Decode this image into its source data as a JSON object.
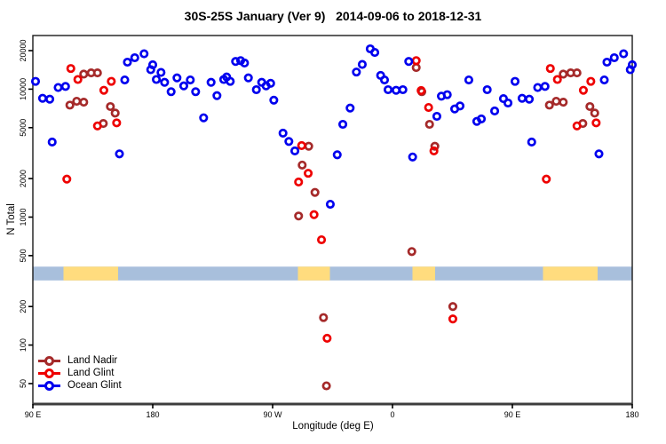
{
  "title": "30S-25S January (Ver 9)   2014-09-06 to 2018-12-31",
  "chart_data": {
    "type": "scatter",
    "title": "30S-25S January (Ver 9)   2014-09-06 to 2018-12-31",
    "xlabel": "Longitude (deg E)",
    "ylabel": "N Total",
    "y_scale": "log",
    "ylim": [
      50,
      20000
    ],
    "y_ticks": [
      50,
      100,
      200,
      500,
      1000,
      2000,
      5000,
      10000,
      20000
    ],
    "x_axis_span_deg": 450,
    "x_axis_note": "Axis starts at 90E and wraps eastward through 180, 90W, 0, 90E to 180; points with longitude >= 90E are plotted at both ends",
    "x_ticks": [
      {
        "axis_deg": 0,
        "label": "90 E"
      },
      {
        "axis_deg": 90,
        "label": "180"
      },
      {
        "axis_deg": 180,
        "label": "90 W"
      },
      {
        "axis_deg": 270,
        "label": "0"
      },
      {
        "axis_deg": 360,
        "label": "90 E"
      },
      {
        "axis_deg": 450,
        "label": "180"
      }
    ],
    "grid": "off",
    "legend_position": "bottom-left-inside",
    "map_strip": {
      "ocean_color": "#a8bfdc",
      "land_color": "#ffdc7e",
      "y_range_n": [
        320,
        410
      ],
      "land_segments_lon": [
        [
          113,
          154
        ],
        [
          -71,
          -47
        ],
        [
          15,
          32
        ]
      ]
    },
    "series": [
      {
        "name": "Land Nadir",
        "color": "#a52a2a",
        "points": [
          [
            117.8,
            7500
          ],
          [
            122.9,
            8040
          ],
          [
            128.2,
            7910
          ],
          [
            128.2,
            13100
          ],
          [
            133.8,
            13400
          ],
          [
            138.5,
            13400
          ],
          [
            142.9,
            5390
          ],
          [
            148.2,
            7310
          ],
          [
            151.8,
            6500
          ],
          [
            -70.5,
            1020
          ],
          [
            -67.8,
            2550
          ],
          [
            -62.9,
            3580
          ],
          [
            -58.2,
            1560
          ],
          [
            -51.8,
            164
          ],
          [
            -49.6,
            48
          ],
          [
            14.5,
            538
          ],
          [
            17.8,
            14750
          ],
          [
            22.0,
            9550
          ],
          [
            27.8,
            5310
          ],
          [
            31.8,
            3580
          ],
          [
            45.3,
            200
          ]
        ]
      },
      {
        "name": "Land Glint",
        "color": "#ee0000",
        "points": [
          [
            115.5,
            1980
          ],
          [
            118.5,
            14500
          ],
          [
            123.8,
            11900
          ],
          [
            138.5,
            5160
          ],
          [
            143.3,
            9800
          ],
          [
            148.9,
            11500
          ],
          [
            152.9,
            5450
          ],
          [
            -70.5,
            1880
          ],
          [
            -68.2,
            3620
          ],
          [
            -63.3,
            2200
          ],
          [
            -58.9,
            1045
          ],
          [
            -53.3,
            665
          ],
          [
            -49.1,
            113
          ],
          [
            17.8,
            16700
          ],
          [
            21.5,
            9750
          ],
          [
            27.1,
            7190
          ],
          [
            31.1,
            3290
          ],
          [
            45.3,
            160
          ]
        ]
      },
      {
        "name": "Ocean Glint",
        "color": "#0000ee",
        "points": [
          [
            92,
            11500
          ],
          [
            97.3,
            8480
          ],
          [
            102.7,
            8350
          ],
          [
            104.5,
            3860
          ],
          [
            109,
            10300
          ],
          [
            114.5,
            10500
          ],
          [
            155,
            3120
          ],
          [
            159,
            11800
          ],
          [
            161,
            16250
          ],
          [
            166.5,
            17600
          ],
          [
            173.5,
            18900
          ],
          [
            178.5,
            14200
          ],
          [
            180,
            15500
          ],
          [
            -177.3,
            11900
          ],
          [
            -173.8,
            13500
          ],
          [
            -171.1,
            11300
          ],
          [
            -166.2,
            9550
          ],
          [
            -161.8,
            12250
          ],
          [
            -156.7,
            10600
          ],
          [
            -151.8,
            11800
          ],
          [
            -147.8,
            9550
          ],
          [
            -141.8,
            5970
          ],
          [
            -136.2,
            11300
          ],
          [
            -131.8,
            8900
          ],
          [
            -126.7,
            11900
          ],
          [
            -124.5,
            12450
          ],
          [
            -121.8,
            11500
          ],
          [
            -117.8,
            16450
          ],
          [
            -114,
            16700
          ],
          [
            -111.1,
            16000
          ],
          [
            -108.2,
            12250
          ],
          [
            -102.2,
            9900
          ],
          [
            -98.2,
            11300
          ],
          [
            -94.9,
            10600
          ],
          [
            -91.5,
            11100
          ],
          [
            -89.1,
            8200
          ],
          [
            -82.2,
            4530
          ],
          [
            -77.8,
            3900
          ],
          [
            -73.3,
            3290
          ],
          [
            -46.7,
            1260
          ],
          [
            -41.5,
            3070
          ],
          [
            -37.3,
            5310
          ],
          [
            -31.8,
            7110
          ],
          [
            -27.1,
            13600
          ],
          [
            -22.7,
            15600
          ],
          [
            -16.7,
            20650
          ],
          [
            -13.3,
            19350
          ],
          [
            -8.9,
            12800
          ],
          [
            -6,
            11800
          ],
          [
            -3.3,
            9900
          ],
          [
            2.7,
            9790
          ],
          [
            7.8,
            9900
          ],
          [
            12.2,
            16450
          ],
          [
            15.1,
            2950
          ],
          [
            33.3,
            6130
          ],
          [
            36.7,
            8810
          ],
          [
            41.1,
            9050
          ],
          [
            46.7,
            7000
          ],
          [
            50.7,
            7390
          ],
          [
            57.3,
            11800
          ],
          [
            63.3,
            5600
          ],
          [
            66.7,
            5850
          ],
          [
            71.1,
            9900
          ],
          [
            76.7,
            6750
          ],
          [
            83.3,
            8430
          ],
          [
            86.7,
            7790
          ]
        ]
      }
    ]
  }
}
